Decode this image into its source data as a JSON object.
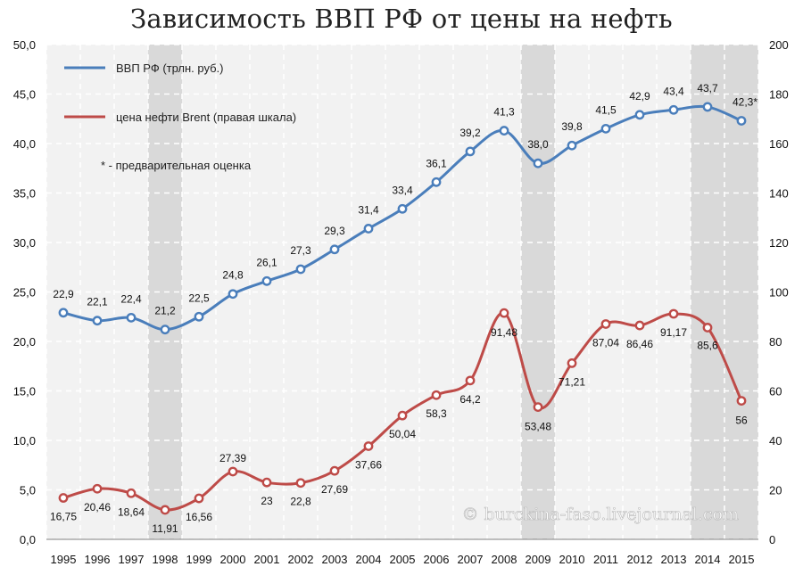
{
  "title": "Зависимость ВВП РФ от цены на нефть",
  "legend": {
    "gdp": "ВВП РФ (трлн. руб.)",
    "oil": "цена нефти Brent (правая шкала)",
    "note": "* - предварительная оценка"
  },
  "watermark": "© burckina-faso.livejournal.com",
  "colors": {
    "gdp": "#4a7ebb",
    "oil": "#be4b48",
    "band": "#d9d9d9",
    "plot_bg": "#f2f2f2"
  },
  "chart_data": {
    "type": "line",
    "x": [
      "1995",
      "1996",
      "1997",
      "1998",
      "1999",
      "2000",
      "2001",
      "2002",
      "2003",
      "2004",
      "2005",
      "2006",
      "2007",
      "2008",
      "2009",
      "2010",
      "2011",
      "2012",
      "2013",
      "2014",
      "2015"
    ],
    "highlighted_years": [
      "1998",
      "2009",
      "2014",
      "2015"
    ],
    "left_axis": {
      "range": [
        0,
        50
      ],
      "ticks": [
        "0,0",
        "5,0",
        "10,0",
        "15,0",
        "20,0",
        "25,0",
        "30,0",
        "35,0",
        "40,0",
        "45,0",
        "50,0"
      ]
    },
    "right_axis": {
      "range": [
        0,
        200
      ],
      "ticks": [
        "0",
        "20",
        "40",
        "60",
        "80",
        "100",
        "120",
        "140",
        "160",
        "180",
        "200"
      ]
    },
    "grid": true,
    "legend_position": "top-left",
    "series": [
      {
        "name": "ВВП РФ (трлн. руб.)",
        "axis": "left",
        "values": [
          22.9,
          22.1,
          22.4,
          21.2,
          22.5,
          24.8,
          26.1,
          27.3,
          29.3,
          31.4,
          33.4,
          36.1,
          39.2,
          41.3,
          38.0,
          39.8,
          41.5,
          42.9,
          43.4,
          43.7,
          42.3
        ],
        "labels": [
          "22,9",
          "22,1",
          "22,4",
          "21,2",
          "22,5",
          "24,8",
          "26,1",
          "27,3",
          "29,3",
          "31,4",
          "33,4",
          "36,1",
          "39,2",
          "41,3",
          "38,0",
          "39,8",
          "41,5",
          "42,9",
          "43,4",
          "43,7",
          "42,3*"
        ]
      },
      {
        "name": "цена нефти Brent (правая шкала)",
        "axis": "right",
        "values": [
          16.75,
          20.46,
          18.64,
          11.91,
          16.56,
          27.39,
          23,
          22.8,
          27.69,
          37.66,
          50.04,
          58.3,
          64.2,
          91.48,
          53.48,
          71.21,
          87.04,
          86.46,
          91.17,
          85.6,
          56
        ],
        "labels": [
          "16,75",
          "20,46",
          "18,64",
          "11,91",
          "16,56",
          "27,39",
          "23",
          "22,8",
          "27,69",
          "37,66",
          "50,04",
          "58,3",
          "64,2",
          "91,48",
          "53,48",
          "71,21",
          "87,04",
          "86,46",
          "91,17",
          "85,6",
          "56"
        ]
      }
    ]
  }
}
